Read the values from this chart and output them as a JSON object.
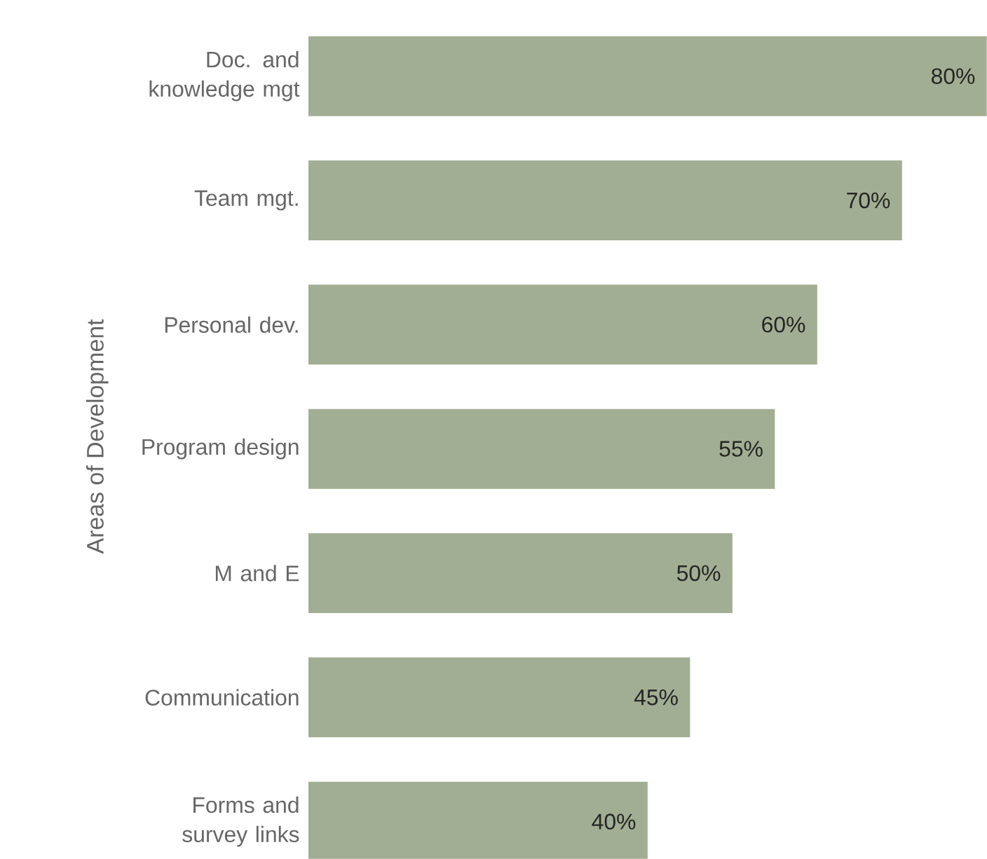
{
  "chart_data": {
    "type": "bar",
    "orientation": "horizontal",
    "ylabel": "Areas of Development",
    "categories": [
      "Doc. and knowledge mgt",
      "Team mgt.",
      "Personal dev.",
      "Program design",
      "M and E",
      "Communication",
      "Forms and survey links"
    ],
    "values": [
      80,
      70,
      60,
      55,
      50,
      45,
      40
    ],
    "value_labels": [
      "80%",
      "70%",
      "60%",
      "55%",
      "50%",
      "45%",
      "40%"
    ],
    "color": "#a2ae93",
    "tick_labels": "y"
  }
}
